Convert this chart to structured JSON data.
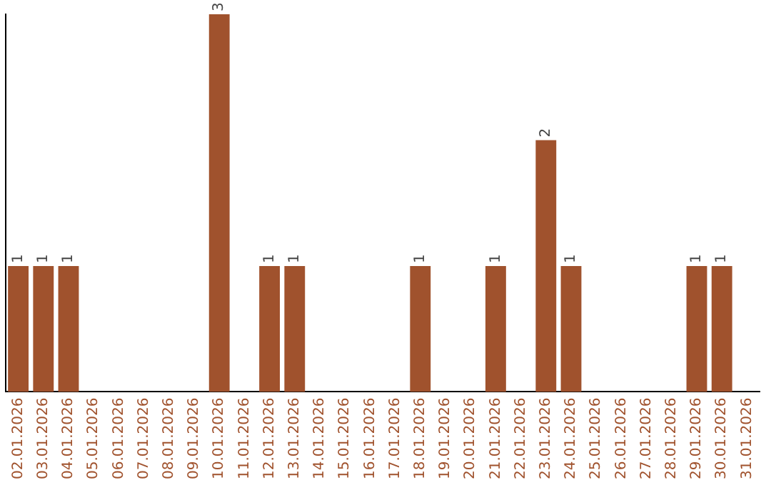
{
  "chart_data": {
    "type": "bar",
    "categories": [
      "02.01.2026",
      "03.01.2026",
      "04.01.2026",
      "05.01.2026",
      "06.01.2026",
      "07.01.2026",
      "08.01.2026",
      "09.01.2026",
      "10.01.2026",
      "11.01.2026",
      "12.01.2026",
      "13.01.2026",
      "14.01.2026",
      "15.01.2026",
      "16.01.2026",
      "17.01.2026",
      "18.01.2026",
      "19.01.2026",
      "20.01.2026",
      "21.01.2026",
      "22.01.2026",
      "23.01.2026",
      "24.01.2026",
      "25.01.2026",
      "26.01.2026",
      "27.01.2026",
      "28.01.2026",
      "29.01.2026",
      "30.01.2026",
      "31.01.2026"
    ],
    "values": [
      1,
      1,
      1,
      0,
      0,
      0,
      0,
      0,
      3,
      0,
      1,
      1,
      0,
      0,
      0,
      0,
      1,
      0,
      0,
      1,
      0,
      2,
      1,
      0,
      0,
      0,
      0,
      1,
      1,
      0
    ],
    "value_labels": [
      "1",
      "1",
      "1",
      null,
      null,
      null,
      null,
      null,
      "3",
      null,
      "1",
      "1",
      null,
      null,
      null,
      null,
      "1",
      null,
      null,
      "1",
      null,
      "2",
      "1",
      null,
      null,
      null,
      null,
      "1",
      "1",
      null
    ],
    "color": "#a0522d",
    "grid": false,
    "legend": false,
    "tick_labels": "x"
  }
}
